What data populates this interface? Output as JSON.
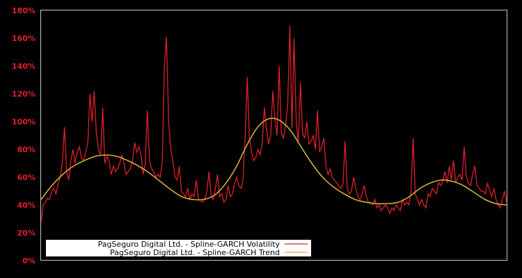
{
  "chart_data": {
    "type": "line",
    "title": "",
    "xlabel": "",
    "ylabel": "",
    "ylim": [
      0,
      180
    ],
    "yticks": [
      0,
      20,
      40,
      60,
      80,
      100,
      120,
      140,
      160,
      180
    ],
    "ytick_labels": [
      "0%",
      "20%",
      "40%",
      "60%",
      "80%",
      "100%",
      "120%",
      "140%",
      "160%",
      "180%"
    ],
    "grid": false,
    "legend_position": "lower left",
    "background": "#000000",
    "axis_color": "#c8c8c8",
    "tick_label_color": "#e0202a",
    "series": [
      {
        "name": "PagSeguro Digital Ltd. - Spline-GARCH Volatility",
        "color": "#e0202a",
        "x_start": 0,
        "x_step": 1,
        "values": [
          28,
          40,
          42,
          45,
          44,
          50,
          52,
          48,
          55,
          60,
          70,
          96,
          64,
          58,
          72,
          80,
          70,
          78,
          82,
          74,
          72,
          78,
          85,
          120,
          100,
          122,
          92,
          80,
          76,
          110,
          70,
          75,
          72,
          62,
          68,
          64,
          66,
          70,
          76,
          70,
          62,
          64,
          66,
          72,
          85,
          78,
          82,
          76,
          62,
          70,
          108,
          72,
          66,
          64,
          60,
          62,
          60,
          70,
          140,
          161,
          100,
          80,
          72,
          60,
          58,
          68,
          50,
          48,
          46,
          52,
          44,
          48,
          46,
          58,
          44,
          44,
          42,
          44,
          50,
          64,
          46,
          44,
          52,
          62,
          46,
          48,
          42,
          44,
          54,
          46,
          48,
          55,
          60,
          54,
          52,
          58,
          90,
          132,
          88,
          78,
          72,
          74,
          80,
          76,
          84,
          110,
          96,
          84,
          90,
          122,
          102,
          90,
          140,
          92,
          88,
          98,
          112,
          169,
          95,
          160,
          100,
          85,
          128,
          92,
          88,
          100,
          84,
          86,
          90,
          80,
          108,
          78,
          82,
          88,
          68,
          62,
          66,
          60,
          58,
          56,
          54,
          52,
          55,
          86,
          52,
          48,
          50,
          60,
          52,
          46,
          44,
          48,
          54,
          46,
          42,
          42,
          40,
          44,
          38,
          40,
          36,
          38,
          40,
          38,
          34,
          38,
          36,
          40,
          38,
          36,
          44,
          40,
          42,
          40,
          50,
          88,
          48,
          44,
          40,
          44,
          40,
          38,
          48,
          46,
          52,
          50,
          48,
          56,
          54,
          58,
          64,
          56,
          68,
          58,
          72,
          56,
          60,
          62,
          58,
          82,
          60,
          56,
          54,
          62,
          68,
          54,
          52,
          50,
          50,
          48,
          56,
          50,
          46,
          52,
          44,
          40,
          38,
          44,
          50,
          42
        ]
      },
      {
        "name": "PagSeguro Digital Ltd. - Spline-GARCH Trend",
        "color": "#d4b03a",
        "x_start": 0,
        "x_step": 10,
        "values": [
          44,
          54,
          62,
          68,
          72,
          75,
          76,
          75,
          72,
          68,
          63,
          57,
          51,
          46,
          44,
          44,
          47,
          55,
          67,
          83,
          96,
          102,
          101,
          94,
          82,
          70,
          60,
          53,
          48,
          44,
          42,
          41,
          41,
          42,
          46,
          52,
          56,
          58,
          57,
          54,
          49,
          44,
          41,
          40
        ]
      }
    ]
  },
  "legend": {
    "items": [
      {
        "label": "PagSeguro Digital Ltd. - Spline-GARCH Volatility",
        "color": "#e0202a"
      },
      {
        "label": "PagSeguro Digital Ltd. - Spline-GARCH Trend",
        "color": "#d4b03a"
      }
    ]
  }
}
